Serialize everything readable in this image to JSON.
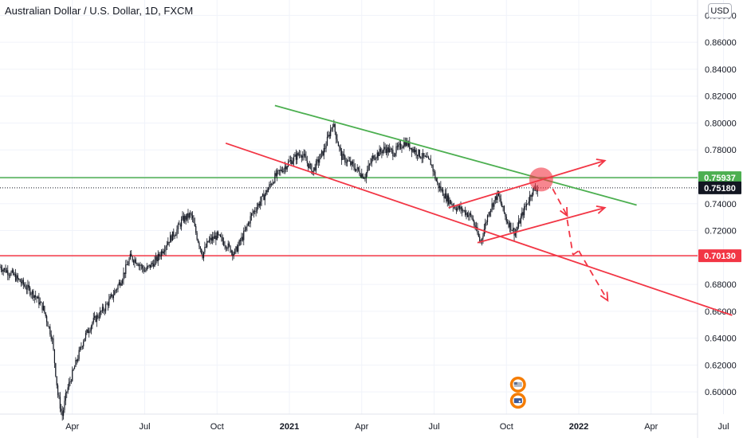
{
  "header": {
    "title": "Australian Dollar / U.S. Dollar, 1D, FXCM",
    "currency_button": "USD"
  },
  "chart_data": {
    "type": "candlestick",
    "instrument": "Australian Dollar / U.S. Dollar",
    "interval": "1D",
    "source": "FXCM",
    "x_ticks": [
      "Apr",
      "Jul",
      "Oct",
      "2021",
      "Apr",
      "Jul",
      "Oct",
      "2022",
      "Apr",
      "Jul"
    ],
    "y_ticks": [
      "0.88000",
      "0.86000",
      "0.84000",
      "0.82000",
      "0.80000",
      "0.78000",
      "0.76000",
      "0.74000",
      "0.72000",
      "0.70000",
      "0.68000",
      "0.66000",
      "0.64000",
      "0.62000",
      "0.60000"
    ],
    "ylim": [
      0.5835,
      0.8915
    ],
    "price_labels": [
      {
        "value": "0.75937",
        "color": "#4caf50"
      },
      {
        "value": "0.75180",
        "color": "#131722"
      },
      {
        "value": "0.70130",
        "color": "#f23645"
      }
    ],
    "horizontal_lines": [
      {
        "price": 0.75937,
        "color": "#4caf50"
      },
      {
        "price": 0.7518,
        "color": "#131722",
        "style": "dotted"
      },
      {
        "price": 0.7013,
        "color": "#f23645"
      }
    ],
    "price_path": [
      [
        2020.0,
        0.693
      ],
      [
        2020.04,
        0.688
      ],
      [
        2020.08,
        0.68
      ],
      [
        2020.12,
        0.672
      ],
      [
        2020.15,
        0.662
      ],
      [
        2020.18,
        0.64
      ],
      [
        2020.2,
        0.598
      ],
      [
        2020.215,
        0.582
      ],
      [
        2020.23,
        0.6
      ],
      [
        2020.26,
        0.62
      ],
      [
        2020.29,
        0.64
      ],
      [
        2020.32,
        0.652
      ],
      [
        2020.36,
        0.662
      ],
      [
        2020.39,
        0.672
      ],
      [
        2020.42,
        0.684
      ],
      [
        2020.45,
        0.7
      ],
      [
        2020.47,
        0.698
      ],
      [
        2020.5,
        0.69
      ],
      [
        2020.54,
        0.698
      ],
      [
        2020.58,
        0.712
      ],
      [
        2020.61,
        0.72
      ],
      [
        2020.63,
        0.728
      ],
      [
        2020.66,
        0.732
      ],
      [
        2020.68,
        0.716
      ],
      [
        2020.7,
        0.702
      ],
      [
        2020.72,
        0.712
      ],
      [
        2020.75,
        0.716
      ],
      [
        2020.78,
        0.71
      ],
      [
        2020.81,
        0.703
      ],
      [
        2020.84,
        0.716
      ],
      [
        2020.87,
        0.732
      ],
      [
        2020.91,
        0.745
      ],
      [
        2020.95,
        0.76
      ],
      [
        2021.0,
        0.771
      ],
      [
        2021.04,
        0.778
      ],
      [
        2021.08,
        0.764
      ],
      [
        2021.12,
        0.78
      ],
      [
        2021.15,
        0.8
      ],
      [
        2021.18,
        0.775
      ],
      [
        2021.22,
        0.768
      ],
      [
        2021.26,
        0.76
      ],
      [
        2021.29,
        0.775
      ],
      [
        2021.33,
        0.781
      ],
      [
        2021.36,
        0.778
      ],
      [
        2021.4,
        0.786
      ],
      [
        2021.43,
        0.78
      ],
      [
        2021.46,
        0.775
      ],
      [
        2021.49,
        0.77
      ],
      [
        2021.51,
        0.755
      ],
      [
        2021.54,
        0.745
      ],
      [
        2021.57,
        0.738
      ],
      [
        2021.6,
        0.735
      ],
      [
        2021.63,
        0.73
      ],
      [
        2021.66,
        0.711
      ],
      [
        2021.69,
        0.735
      ],
      [
        2021.72,
        0.747
      ],
      [
        2021.75,
        0.728
      ],
      [
        2021.78,
        0.718
      ],
      [
        2021.81,
        0.735
      ],
      [
        2021.84,
        0.75
      ],
      [
        2021.86,
        0.752
      ]
    ],
    "trendlines": [
      {
        "color": "#4caf50",
        "style": "solid",
        "from": [
          2020.95,
          0.813
        ],
        "to": [
          2022.2,
          0.739
        ]
      },
      {
        "color": "#f23645",
        "style": "solid",
        "from": [
          2020.78,
          0.785
        ],
        "to": [
          2022.53,
          0.657
        ]
      },
      {
        "color": "#f23645",
        "style": "solid",
        "from": [
          2021.55,
          0.737
        ],
        "to": [
          2022.09,
          0.772
        ],
        "arrow": true
      },
      {
        "color": "#f23645",
        "style": "solid",
        "from": [
          2021.65,
          0.711
        ],
        "to": [
          2022.09,
          0.737
        ],
        "arrow": true
      },
      {
        "color": "#f23645",
        "style": "dashed",
        "from": [
          2021.91,
          0.751
        ],
        "to": [
          2021.96,
          0.731
        ],
        "arrow": true
      },
      {
        "color": "#f23645",
        "style": "dashed",
        "from": [
          2021.96,
          0.728
        ],
        "to": [
          2021.98,
          0.702
        ],
        "arrow": false
      },
      {
        "color": "#f23645",
        "style": "dashed",
        "from": [
          2021.98,
          0.702
        ],
        "to": [
          2022.0,
          0.705
        ],
        "arrow": false
      },
      {
        "color": "#f23645",
        "style": "dashed",
        "from": [
          2022.0,
          0.705
        ],
        "to": [
          2022.1,
          0.668
        ],
        "arrow": true
      }
    ],
    "highlight_circle": {
      "center": [
        2021.87,
        0.758
      ],
      "color": "#f23645"
    },
    "event_icons": [
      {
        "icon": "us-flag-event-icon",
        "x": 2021.79,
        "price": 0.6055
      },
      {
        "icon": "au-flag-event-icon",
        "x": 2021.79,
        "price": 0.5935
      }
    ]
  }
}
